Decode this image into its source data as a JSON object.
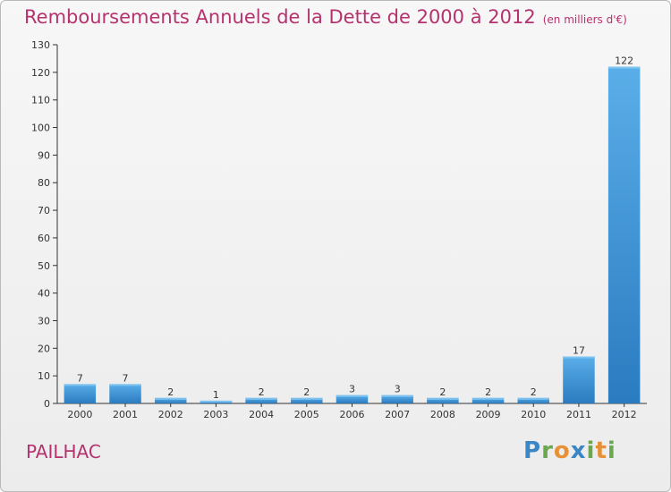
{
  "chart_data": {
    "type": "bar",
    "title": "Remboursements Annuels de la Dette de 2000 à 2012",
    "subtitle": "(en milliers d'€)",
    "categories": [
      "2000",
      "2001",
      "2002",
      "2003",
      "2004",
      "2005",
      "2006",
      "2007",
      "2008",
      "2009",
      "2010",
      "2011",
      "2012"
    ],
    "values": [
      7,
      7,
      2,
      1,
      2,
      2,
      3,
      3,
      2,
      2,
      2,
      17,
      122
    ],
    "ylim": [
      0,
      130
    ],
    "yticks": [
      0,
      10,
      20,
      30,
      40,
      50,
      60,
      70,
      80,
      90,
      100,
      110,
      120,
      130
    ],
    "xlabel": "",
    "ylabel": "",
    "grid": false,
    "bar_color": "#3d8fd1"
  },
  "place_name": "PAILHAC",
  "brand": "Proxiti"
}
